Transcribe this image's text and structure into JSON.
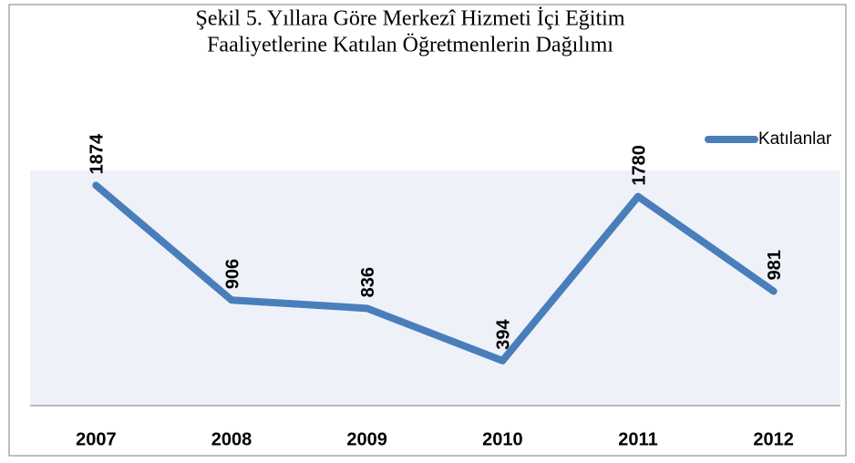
{
  "chart_data": {
    "type": "line",
    "title": [
      "Şekil 5. Yıllara Göre Merkezî Hizmeti İçi Eğitim",
      "Faaliyetlerine Katılan Öğretmenlerin Dağılımı"
    ],
    "categories": [
      "2007",
      "2008",
      "2009",
      "2010",
      "2011",
      "2012"
    ],
    "series": [
      {
        "name": "Katılanlar",
        "color": "#4a7ebb",
        "values": [
          1874,
          906,
          836,
          394,
          1780,
          981
        ]
      }
    ],
    "ylim": [
      0,
      2000
    ],
    "legend": "right"
  }
}
